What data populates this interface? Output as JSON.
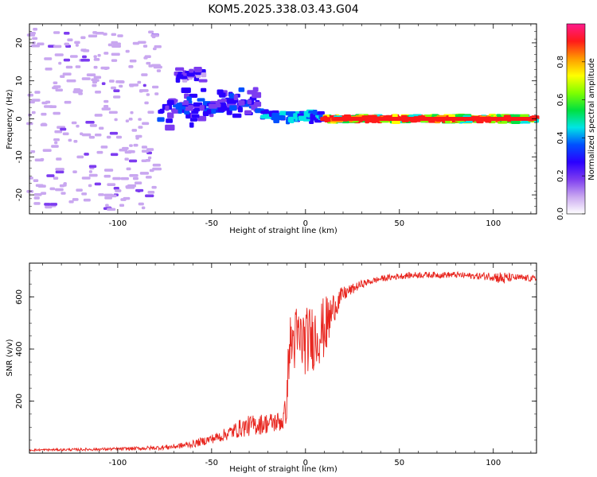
{
  "title": "KOM5.2025.338.03.43.G04",
  "chart_data": [
    {
      "type": "heatmap",
      "xlabel": "Height of straight line (km)",
      "ylabel": "Frequency (Hz)",
      "xlim": [
        -147,
        123
      ],
      "ylim": [
        -25,
        25
      ],
      "xticks": [
        -100,
        -50,
        0,
        50,
        100
      ],
      "yticks": [
        -20,
        -10,
        0,
        10,
        20
      ],
      "colorbar": {
        "label": "Normalized spectral amplitude",
        "range": [
          0,
          1
        ],
        "ticks": [
          0.0,
          0.2,
          0.4,
          0.6,
          0.8
        ],
        "colors": [
          "#ffffff",
          "#c9a7f0",
          "#7d3cf0",
          "#2a00ff",
          "#0050ff",
          "#00e5e5",
          "#00e040",
          "#7fff00",
          "#ffff00",
          "#ff9900",
          "#ff1a1a",
          "#ff1a8c"
        ]
      },
      "features": [
        {
          "x": [
            -147,
            -78
          ],
          "y_center": 0,
          "y_spread": 24,
          "amp": 0.12,
          "note": "scattered noise"
        },
        {
          "x": [
            -78,
            -25
          ],
          "y_center": 3.5,
          "y_spread": 5,
          "amp": 0.35
        },
        {
          "x": [
            -68,
            -54
          ],
          "y_center": 11.5,
          "y_spread": 2,
          "amp": 0.25
        },
        {
          "x": [
            -25,
            10
          ],
          "y_center": 0.5,
          "y_spread": 1.5,
          "amp": 0.5
        },
        {
          "x": [
            10,
            123
          ],
          "y_center": 0,
          "y_spread": 0.6,
          "amp": 0.95
        }
      ]
    },
    {
      "type": "line",
      "xlabel": "Height of straight line (km)",
      "ylabel": "SNR (v/v)",
      "xlim": [
        -147,
        123
      ],
      "ylim": [
        0,
        730
      ],
      "xticks": [
        -100,
        -50,
        0,
        50,
        100
      ],
      "yticks": [
        200,
        400,
        600
      ],
      "color": "#e8261f",
      "x": [
        -147,
        -120,
        -100,
        -80,
        -70,
        -60,
        -50,
        -45,
        -40,
        -35,
        -30,
        -25,
        -20,
        -15,
        -12,
        -10,
        -9,
        -8,
        -5,
        0,
        5,
        10,
        12,
        15,
        20,
        25,
        30,
        35,
        40,
        50,
        60,
        70,
        80,
        90,
        100,
        105,
        110,
        123
      ],
      "y": [
        12,
        14,
        16,
        20,
        25,
        35,
        55,
        65,
        80,
        95,
        105,
        110,
        115,
        120,
        125,
        180,
        380,
        420,
        440,
        430,
        450,
        480,
        500,
        560,
        610,
        630,
        650,
        660,
        670,
        680,
        685,
        685,
        685,
        680,
        680,
        670,
        675,
        670
      ],
      "amplitude": [
        4,
        5,
        6,
        8,
        10,
        14,
        18,
        22,
        28,
        35,
        40,
        40,
        40,
        40,
        45,
        60,
        110,
        120,
        130,
        130,
        130,
        120,
        110,
        60,
        30,
        20,
        15,
        12,
        12,
        12,
        12,
        12,
        12,
        12,
        18,
        28,
        14,
        12
      ]
    }
  ]
}
